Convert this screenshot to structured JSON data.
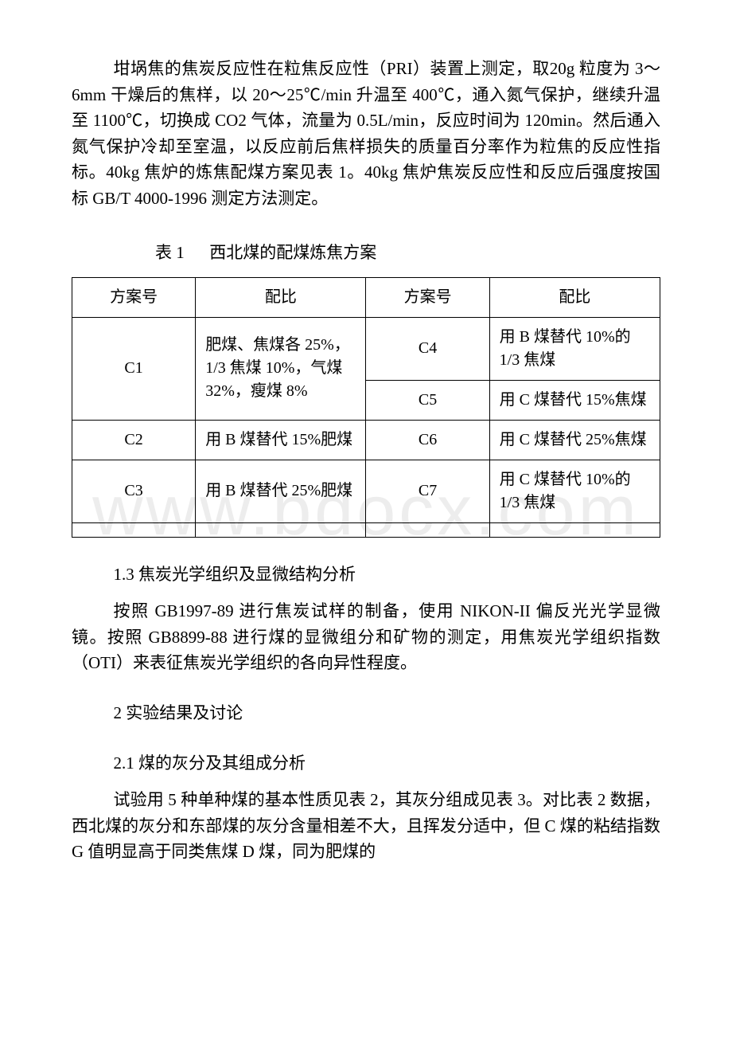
{
  "watermark": "www.bdocx.com",
  "para1": "坩埚焦的焦炭反应性在粒焦反应性（PRI）装置上测定，取20g 粒度为 3～6mm 干燥后的焦样，以 20～25℃/min 升温至 400℃，通入氮气保护，继续升温至 1100℃，切换成 CO2 气体，流量为 0.5L/min，反应时间为 120min。然后通入氮气保护冷却至室温，以反应前后焦样损失的质量百分率作为粒焦的反应性指标。40kg 焦炉的炼焦配煤方案见表 1。40kg 焦炉焦炭反应性和反应后强度按国标 GB/T 4000-1996 测定方法测定。",
  "table_caption_label": "表 1",
  "table_caption_title": "西北煤的配煤炼焦方案",
  "table": {
    "header": {
      "col1": "方案号",
      "col2": "配比",
      "col3": "方案号",
      "col4": "配比"
    },
    "rows": {
      "c1_plan": "C1",
      "c1_ratio": "肥煤、焦煤各 25%，1/3 焦煤 10%，气煤 32%，瘦煤 8%",
      "c4_plan": "C4",
      "c4_ratio": "用 B 煤替代 10%的 1/3 焦煤",
      "c5_plan": "C5",
      "c5_ratio": "用 C 煤替代 15%焦煤",
      "c2_plan": "C2",
      "c2_ratio": "用 B 煤替代 15%肥煤",
      "c6_plan": "C6",
      "c6_ratio": "用 C 煤替代 25%焦煤",
      "c3_plan": "C3",
      "c3_ratio": "用 B 煤替代 25%肥煤",
      "c7_plan": "C7",
      "c7_ratio": "用 C 煤替代 10%的 1/3 焦煤"
    }
  },
  "sec_1_3": "1.3  焦炭光学组织及显微结构分析",
  "para_1_3": "按照 GB1997-89 进行焦炭试样的制备，使用 NIKON-II 偏反光光学显微镜。按照 GB8899-88 进行煤的显微组分和矿物的测定，用焦炭光学组织指数（OTI）来表征焦炭光学组织的各向异性程度。",
  "sec_2": "2  实验结果及讨论",
  "sec_2_1": "2.1  煤的灰分及其组成分析",
  "para_2_1": "试验用 5 种单种煤的基本性质见表 2，其灰分组成见表 3。对比表 2 数据，西北煤的灰分和东部煤的灰分含量相差不大，且挥发分适中，但 C 煤的粘结指数 G 值明显高于同类焦煤 D 煤，同为肥煤的"
}
